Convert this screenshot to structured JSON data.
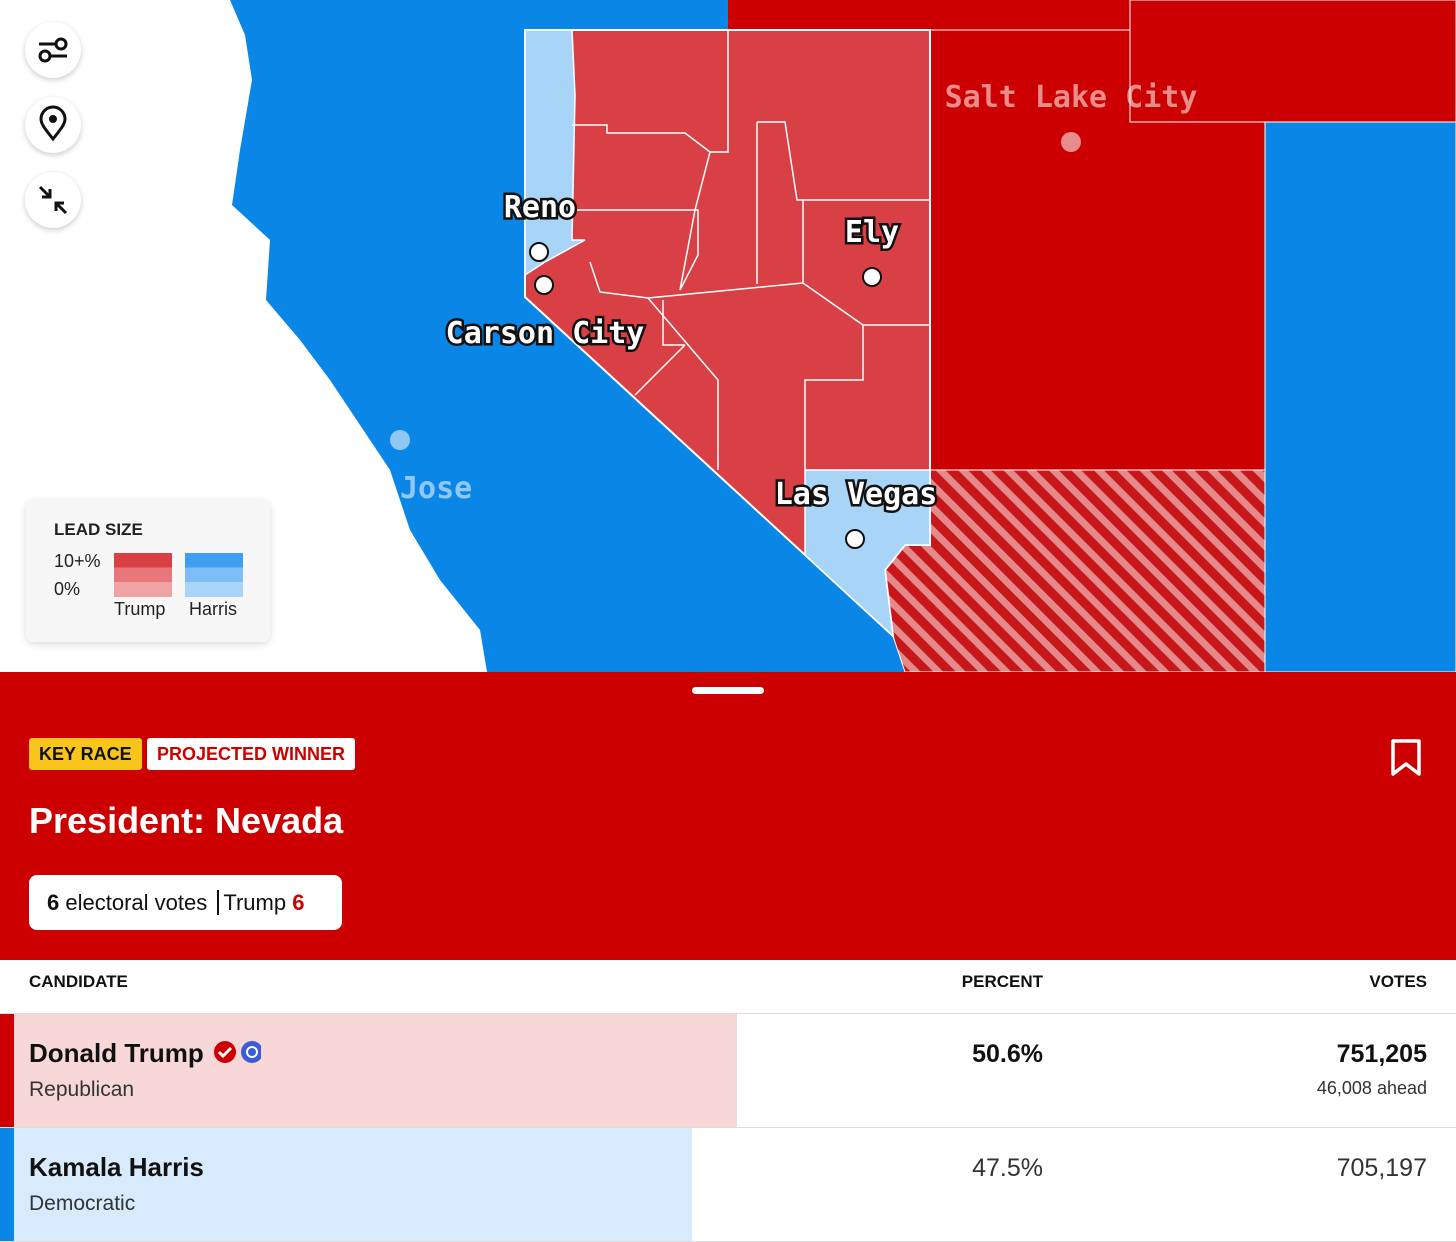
{
  "map": {
    "cities": [
      "Salt Lake City",
      "Reno",
      "Ely",
      "Carson City",
      "Las Vegas",
      "Jose"
    ],
    "legend": {
      "title": "LEAD SIZE",
      "high": "10+%",
      "low": "0%",
      "candidates": [
        "Trump",
        "Harris"
      ]
    }
  },
  "race": {
    "badges": [
      "KEY RACE",
      "PROJECTED WINNER"
    ],
    "title": "President: Nevada",
    "electoral": {
      "count": "6",
      "label": "electoral votes",
      "winner": "Trump",
      "winner_votes": "6"
    }
  },
  "table": {
    "headers": [
      "CANDIDATE",
      "PERCENT",
      "VOTES"
    ],
    "candidates": [
      {
        "name": "Donald Trump",
        "party": "Republican",
        "percent": 50.6,
        "percent_label": "50.6%",
        "votes": "751,205",
        "ahead": "46,008 ahead"
      },
      {
        "name": "Kamala Harris",
        "party": "Democratic",
        "percent": 47.5,
        "percent_label": "47.5%",
        "votes": "705,197"
      }
    ]
  }
}
